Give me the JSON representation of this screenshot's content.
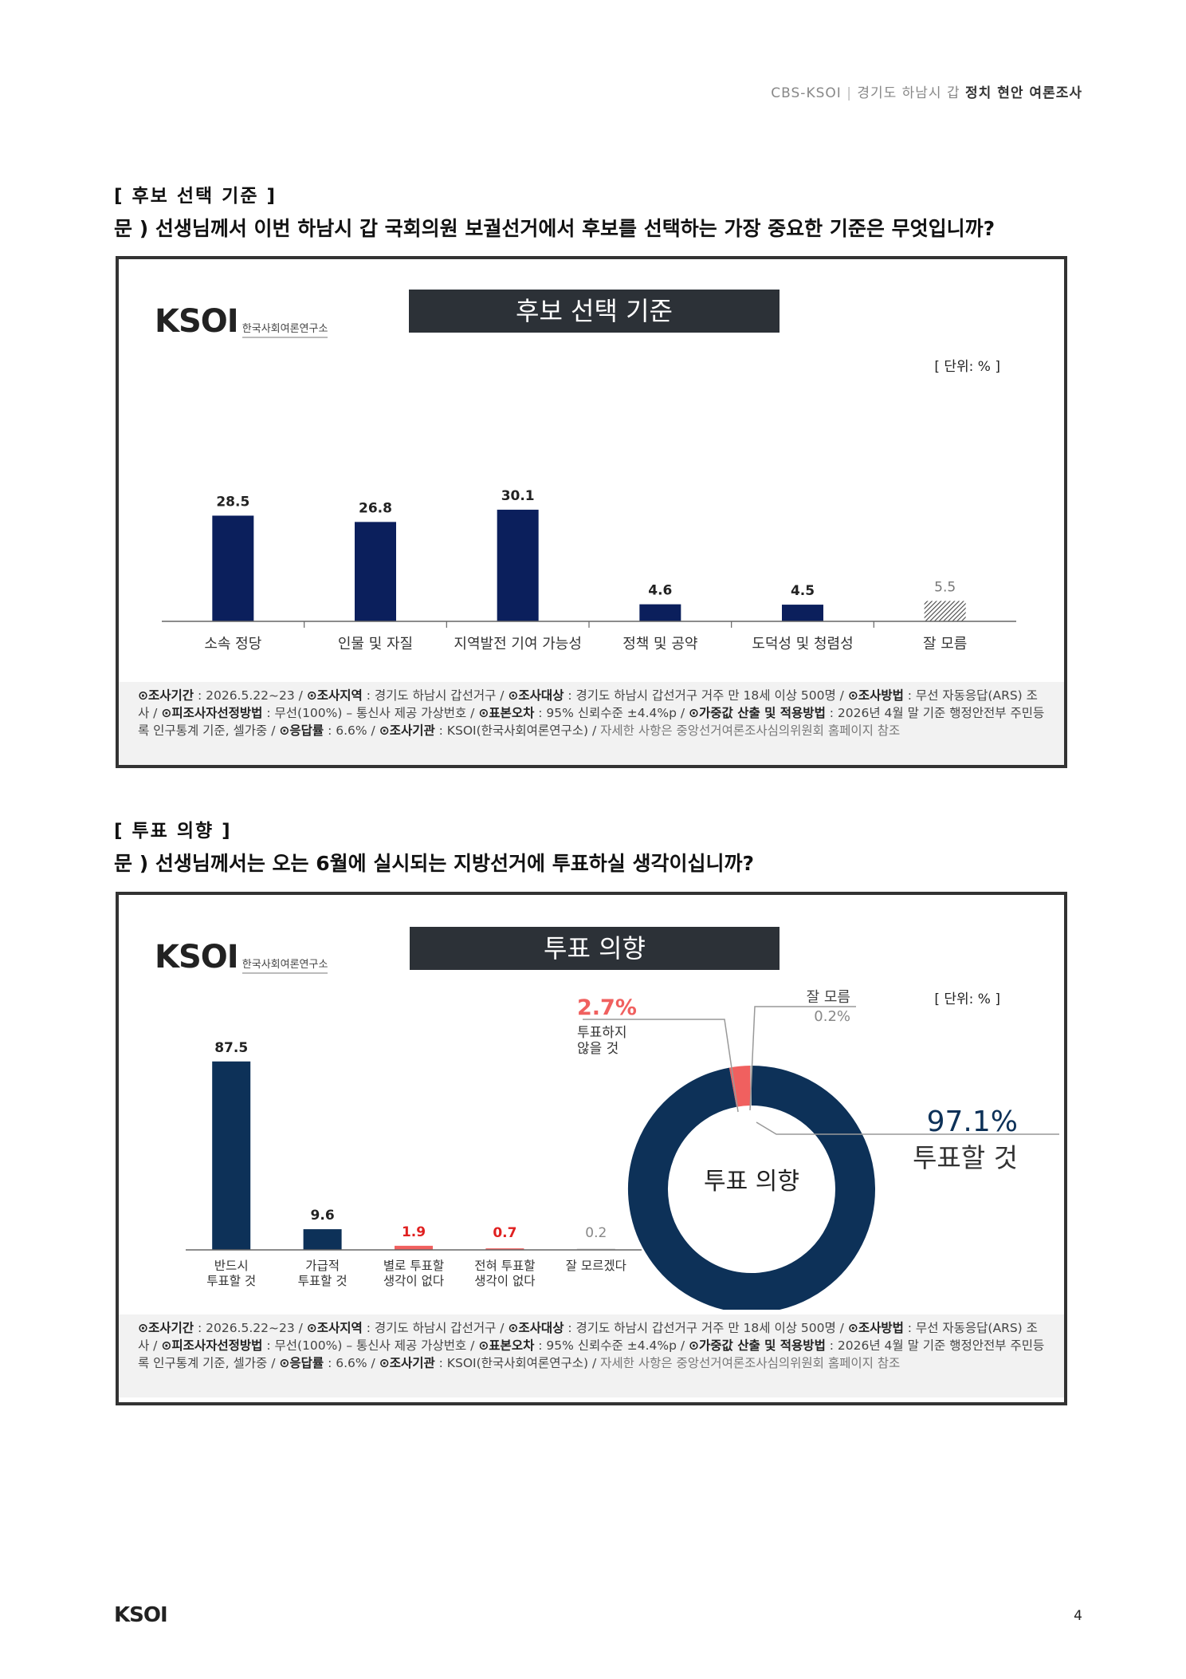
{
  "header": {
    "left": "CBS-KSOI",
    "sep": "|",
    "middle": "경기도 하남시 갑",
    "bold": "정치 현안 여론조사"
  },
  "section1": {
    "title": "[ 후보 선택 기준 ]",
    "question": "문 )   선생님께서 이번 하남시 갑 국회의원 보궐선거에서 후보를 선택하는 가장 중요한 기준은 무엇입니까?",
    "logo_text": "KSOI",
    "logo_sub": "한국사회여론연구소",
    "banner": "후보 선택 기준",
    "unit": "[ 단위: % ]"
  },
  "section2": {
    "title": "[ 투표 의향 ]",
    "question": "문 )   선생님께서는 오는 6월에 실시되는 지방선거에 투표하실 생각이십니까?",
    "logo_text": "KSOI",
    "logo_sub": "한국사회여론연구소",
    "banner": "투표 의향",
    "unit": "[ 단위: % ]",
    "donut_center": "투표 의향",
    "callouts": {
      "main_value": "97.1%",
      "main_label": "투표할 것",
      "no_value": "2.7%",
      "no_label_1": "투표하지",
      "no_label_2": "않을 것",
      "dk_label": "잘 모름",
      "dk_value": "0.2%"
    }
  },
  "footnote": {
    "p1_label": "⊙조사기간",
    "p1_text": " : 2026.5.22~23 / ",
    "p2_label": "⊙조사지역",
    "p2_text": " : 경기도 하남시 갑선거구 / ",
    "p3_label": "⊙조사대상",
    "p3_text": " : 경기도 하남시 갑선거구 거주 만 18세 이상 500명 / ",
    "p4_label": "⊙조사방법",
    "p4_text": " : 무선 자동응답(ARS) 조사 / ",
    "p5_label": "⊙피조사자선정방법",
    "p5_text": " : 무선(100%) – 통신사 제공 가상번호 / ",
    "p6_label": "⊙표본오차",
    "p6_text": " : 95% 신뢰수준 ±4.4%p / ",
    "p7_label": "⊙가중값 산출 및 적용방법",
    "p7_text": " : 2026년 4월 말 기준 행정안전부 주민등록 인구통계 기준, 셀가중 / ",
    "p8_label": "⊙응답률",
    "p8_text": " : 6.6% / ",
    "p9_label": "⊙조사기관",
    "p9_text": " : KSOI(한국사회여론연구소) / ",
    "p10_text": "자세한 사항은 중앙선거여론조사심의위원회 홈페이지 참조"
  },
  "footer": {
    "logo": "KSOI",
    "page": "4"
  },
  "chart_data": [
    {
      "type": "bar",
      "title": "후보 선택 기준",
      "categories": [
        "소속 정당",
        "인물 및 자질",
        "지역발전 기여 가능성",
        "정책 및 공약",
        "도덕성 및 청렴성",
        "잘 모름"
      ],
      "values": [
        28.5,
        26.8,
        30.1,
        4.6,
        4.5,
        5.5
      ],
      "colors": [
        "#0b1f5c",
        "#0b1f5c",
        "#0b1f5c",
        "#0b1f5c",
        "#0b1f5c",
        "hatch"
      ],
      "unit": "%"
    },
    {
      "type": "bar",
      "title": "투표 의향",
      "categories": [
        [
          "반드시",
          "투표할 것"
        ],
        [
          "가급적",
          "투표할 것"
        ],
        [
          "별로 투표할",
          "생각이 없다"
        ],
        [
          "전혀 투표할",
          "생각이 없다"
        ],
        [
          "잘 모르겠다"
        ]
      ],
      "values": [
        87.5,
        9.6,
        1.9,
        0.7,
        0.2
      ],
      "colors": [
        "#0d3158",
        "#0d3158",
        "#f0605f",
        "#f0605f",
        "#cccccc"
      ],
      "label_colors": [
        "#222222",
        "#222222",
        "#e02020",
        "#e02020",
        "#888888"
      ],
      "unit": "%"
    },
    {
      "type": "pie",
      "title": "투표 의향",
      "labels": [
        "투표할 것",
        "투표하지 않을 것",
        "잘 모름"
      ],
      "values": [
        97.1,
        2.7,
        0.2
      ],
      "colors": [
        "#0d3158",
        "#f0605f",
        "#bbbbbb"
      ],
      "unit": "%"
    }
  ]
}
